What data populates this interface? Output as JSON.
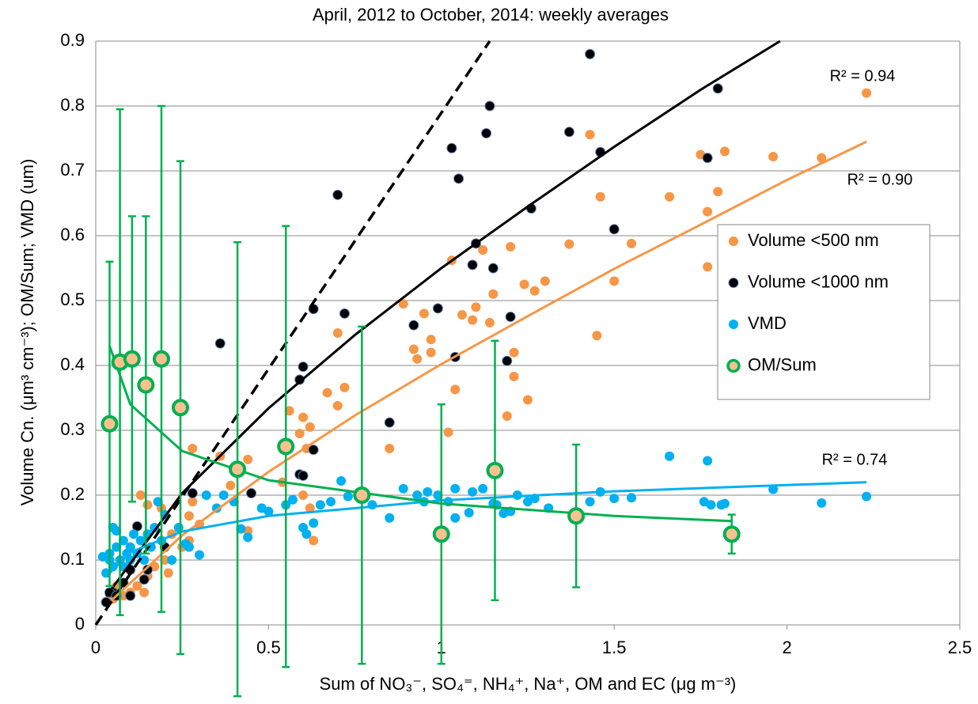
{
  "chart_data": {
    "type": "scatter",
    "title": "April, 2012 to October, 2014: weekly averages",
    "xlabel": "Sum of NO₃⁻, SO₄⁼, NH₄⁺, Na⁺, OM and EC (μg m⁻³)",
    "ylabel": "Volume Cn. (μm³ cm⁻³); OM/Sum; VMD (um)",
    "xlim": [
      0,
      2.5
    ],
    "ylim": [
      0,
      0.9
    ],
    "xticks": [
      0,
      0.5,
      1,
      1.5,
      2,
      2.5
    ],
    "yticks": [
      0,
      0.1,
      0.2,
      0.3,
      0.4,
      0.5,
      0.6,
      0.7,
      0.8,
      0.9
    ],
    "grid": true,
    "legend": "right",
    "series": [
      {
        "name": "Volume <500 nm",
        "color": "#f79646",
        "x": [
          2.23,
          1.75,
          1.82,
          1.96,
          2.1,
          1.43,
          1.8,
          1.77,
          1.66,
          1.46,
          1.77,
          1.55,
          1.37,
          1.5,
          1.3,
          1.24,
          1.27,
          1.2,
          1.12,
          1.15,
          1.14,
          1.1,
          1.09,
          1.06,
          1.03,
          1.2,
          1.21,
          1.21,
          1.25,
          1.19,
          1.04,
          1.02,
          0.89,
          0.95,
          0.97,
          0.97,
          0.92,
          0.93,
          0.85,
          1.45,
          0.7,
          0.72,
          0.7,
          0.67,
          0.56,
          0.6,
          0.62,
          0.59,
          0.61,
          0.54,
          0.44,
          0.36,
          0.39,
          0.6,
          0.62,
          0.63,
          0.44,
          0.28,
          0.28,
          0.27,
          0.22,
          0.19,
          0.13,
          0.15,
          0.2,
          0.17,
          0.15,
          0.12,
          0.1,
          0.08,
          0.06,
          0.05,
          0.14,
          0.25,
          0.21,
          0.3,
          0.27
        ],
        "values": [
          0.82,
          0.725,
          0.73,
          0.722,
          0.72,
          0.756,
          0.668,
          0.637,
          0.66,
          0.66,
          0.552,
          0.588,
          0.587,
          0.53,
          0.53,
          0.525,
          0.515,
          0.583,
          0.578,
          0.51,
          0.466,
          0.49,
          0.47,
          0.478,
          0.562,
          0.475,
          0.42,
          0.383,
          0.347,
          0.322,
          0.363,
          0.297,
          0.495,
          0.48,
          0.44,
          0.42,
          0.425,
          0.41,
          0.272,
          0.446,
          0.45,
          0.366,
          0.338,
          0.358,
          0.33,
          0.32,
          0.305,
          0.295,
          0.272,
          0.22,
          0.255,
          0.26,
          0.215,
          0.2,
          0.18,
          0.13,
          0.145,
          0.272,
          0.19,
          0.168,
          0.14,
          0.18,
          0.2,
          0.185,
          0.1,
          0.09,
          0.075,
          0.06,
          0.05,
          0.045,
          0.06,
          0.04,
          0.05,
          0.12,
          0.08,
          0.155,
          0.13
        ]
      },
      {
        "name": "Volume <1000 nm",
        "color": "#000000",
        "edgecolor": "#5b7fb5",
        "x": [
          1.43,
          1.8,
          1.14,
          1.13,
          1.37,
          1.03,
          1.46,
          1.77,
          1.05,
          0.7,
          1.26,
          1.5,
          1.1,
          1.09,
          1.15,
          0.99,
          0.63,
          0.72,
          1.2,
          0.92,
          0.36,
          1.04,
          1.19,
          0.6,
          0.59,
          0.85,
          0.63,
          0.59,
          0.6,
          0.45,
          0.28,
          0.12,
          0.1,
          0.08,
          0.1,
          0.05,
          0.04,
          0.06,
          0.15,
          0.2,
          0.03,
          0.14
        ],
        "values": [
          0.88,
          0.827,
          0.8,
          0.758,
          0.76,
          0.735,
          0.729,
          0.72,
          0.688,
          0.663,
          0.642,
          0.61,
          0.588,
          0.555,
          0.55,
          0.488,
          0.487,
          0.48,
          0.475,
          0.462,
          0.434,
          0.413,
          0.407,
          0.398,
          0.378,
          0.312,
          0.27,
          0.232,
          0.23,
          0.203,
          0.203,
          0.152,
          0.085,
          0.065,
          0.045,
          0.05,
          0.05,
          0.045,
          0.085,
          0.12,
          0.035,
          0.07
        ]
      },
      {
        "name": "VMD",
        "color": "#00b0f0",
        "x": [
          2.23,
          2.1,
          1.96,
          1.66,
          1.77,
          1.76,
          1.78,
          1.81,
          1.82,
          1.55,
          1.5,
          1.46,
          1.43,
          1.31,
          1.27,
          1.25,
          1.22,
          1.2,
          1.18,
          1.16,
          1.15,
          1.12,
          1.09,
          1.08,
          1.04,
          1.02,
          1.04,
          0.99,
          0.96,
          0.95,
          0.93,
          0.89,
          0.85,
          0.8,
          0.78,
          0.73,
          0.71,
          0.68,
          0.65,
          0.63,
          0.61,
          0.6,
          0.57,
          0.55,
          0.5,
          0.48,
          0.44,
          0.42,
          0.4,
          0.37,
          0.35,
          0.32,
          0.3,
          0.27,
          0.26,
          0.24,
          0.22,
          0.2,
          0.19,
          0.18,
          0.17,
          0.16,
          0.15,
          0.14,
          0.13,
          0.12,
          0.11,
          0.1,
          0.09,
          0.08,
          0.07,
          0.06,
          0.05,
          0.04,
          0.03,
          0.05,
          0.06,
          0.04,
          0.02,
          0.08,
          0.1
        ],
        "values": [
          0.198,
          0.188,
          0.209,
          0.26,
          0.253,
          0.19,
          0.185,
          0.185,
          0.187,
          0.196,
          0.195,
          0.205,
          0.19,
          0.18,
          0.195,
          0.19,
          0.2,
          0.175,
          0.172,
          0.185,
          0.187,
          0.21,
          0.205,
          0.173,
          0.21,
          0.19,
          0.165,
          0.2,
          0.205,
          0.19,
          0.2,
          0.21,
          0.165,
          0.185,
          0.198,
          0.198,
          0.222,
          0.19,
          0.185,
          0.157,
          0.14,
          0.15,
          0.193,
          0.185,
          0.175,
          0.18,
          0.135,
          0.148,
          0.19,
          0.2,
          0.18,
          0.2,
          0.108,
          0.12,
          0.125,
          0.15,
          0.1,
          0.17,
          0.13,
          0.19,
          0.15,
          0.12,
          0.14,
          0.1,
          0.13,
          0.11,
          0.14,
          0.12,
          0.11,
          0.13,
          0.1,
          0.12,
          0.09,
          0.11,
          0.08,
          0.15,
          0.145,
          0.1,
          0.105,
          0.09,
          0.1
        ]
      },
      {
        "name": "OM/Sum",
        "color": "#00b050",
        "fill": "#fac090",
        "x": [
          0.04,
          0.07,
          0.105,
          0.145,
          0.19,
          0.245,
          0.41,
          0.55,
          0.77,
          1.0,
          1.155,
          1.39,
          1.84
        ],
        "values": [
          0.31,
          0.405,
          0.41,
          0.37,
          0.41,
          0.335,
          0.24,
          0.275,
          0.2,
          0.14,
          0.238,
          0.168,
          0.14
        ],
        "errors": [
          0.25,
          0.39,
          0.22,
          0.26,
          0.39,
          0.38,
          0.35,
          0.34,
          0.26,
          0.2,
          0.2,
          0.11,
          0.03
        ]
      }
    ],
    "trendlines": [
      {
        "color": "#000000",
        "dash": true,
        "x": [
          0,
          1.14
        ],
        "y": [
          0,
          0.9
        ]
      },
      {
        "color": "#000000",
        "label": "R² = 0.94",
        "x": [
          0.03,
          0.25,
          0.5,
          0.75,
          1,
          1.25,
          1.5,
          1.75,
          1.98
        ],
        "y": [
          0.044,
          0.203,
          0.334,
          0.447,
          0.55,
          0.645,
          0.737,
          0.825,
          0.9
        ]
      },
      {
        "color": "#f79646",
        "label": "R² = 0.90",
        "x": [
          0.05,
          0.25,
          0.5,
          0.75,
          1,
          1.25,
          1.5,
          1.75,
          2,
          2.23
        ],
        "y": [
          0.04,
          0.138,
          0.236,
          0.323,
          0.402,
          0.476,
          0.549,
          0.617,
          0.686,
          0.745
        ]
      },
      {
        "color": "#00b0f0",
        "label": "R² = 0.74",
        "x": [
          0.04,
          0.1,
          0.25,
          0.5,
          1,
          1.5,
          2.23
        ],
        "y": [
          0.08,
          0.112,
          0.144,
          0.168,
          0.192,
          0.206,
          0.22
        ]
      },
      {
        "color": "#00b050",
        "x": [
          0.04,
          0.1,
          0.25,
          0.5,
          1,
          1.5,
          1.84
        ],
        "y": [
          0.43,
          0.34,
          0.268,
          0.223,
          0.187,
          0.168,
          0.16
        ]
      }
    ]
  }
}
